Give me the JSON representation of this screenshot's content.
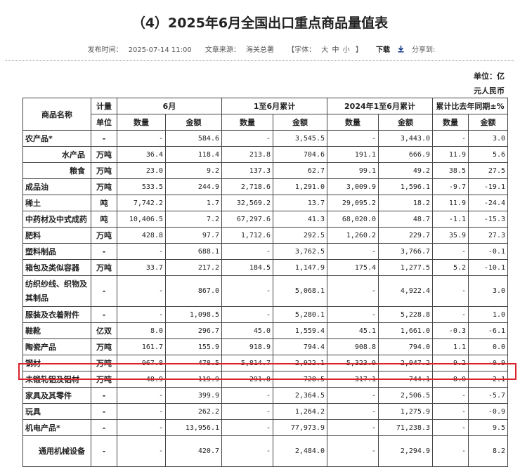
{
  "title": "（4）2025年6月全国出口重点商品量值表",
  "meta": {
    "publish_label": "发布时间：",
    "publish_time": "2025-07-14 11:00",
    "source_label": "文章来源：",
    "source": "海关总署",
    "font_label": "【字体：",
    "font_large": "大",
    "font_medium": "中",
    "font_small": "小",
    "font_close": "】",
    "download": "下载",
    "share": "分享到:"
  },
  "unit_line1": "单位：亿",
  "unit_line2": "元人民币",
  "headers": {
    "name": "商品名称",
    "unit_top": "计量",
    "unit_bottom": "单位",
    "june": "6月",
    "ytd": "1至6月累计",
    "ytd_2024": "2024年1至6月累计",
    "yoy": "累计比去年同期±%",
    "qty": "数量",
    "amount": "金额"
  },
  "rows": [
    {
      "name": "农产品*",
      "unit": "-",
      "jq": "-",
      "ja": "584.6",
      "yq": "-",
      "ya": "3,545.5",
      "pq": "-",
      "pa": "3,443.0",
      "cq": "-",
      "ca": "3.0"
    },
    {
      "name": "水产品",
      "unit": "万吨",
      "jq": "36.4",
      "ja": "118.4",
      "yq": "213.8",
      "ya": "704.6",
      "pq": "191.1",
      "pa": "666.9",
      "cq": "11.9",
      "ca": "5.6",
      "sub": true
    },
    {
      "name": "粮食",
      "unit": "万吨",
      "jq": "23.0",
      "ja": "9.2",
      "yq": "137.3",
      "ya": "62.7",
      "pq": "99.1",
      "pa": "49.2",
      "cq": "38.5",
      "ca": "27.5",
      "sub": true
    },
    {
      "name": "成品油",
      "unit": "万吨",
      "jq": "533.5",
      "ja": "244.9",
      "yq": "2,718.6",
      "ya": "1,291.0",
      "pq": "3,009.9",
      "pa": "1,596.1",
      "cq": "-9.7",
      "ca": "-19.1"
    },
    {
      "name": "稀土",
      "unit": "吨",
      "jq": "7,742.2",
      "ja": "1.7",
      "yq": "32,569.2",
      "ya": "13.7",
      "pq": "29,095.2",
      "pa": "18.2",
      "cq": "11.9",
      "ca": "-24.4"
    },
    {
      "name": "中药材及中式成药",
      "unit": "吨",
      "jq": "10,406.5",
      "ja": "7.2",
      "yq": "67,297.6",
      "ya": "41.3",
      "pq": "68,020.0",
      "pa": "48.7",
      "cq": "-1.1",
      "ca": "-15.3"
    },
    {
      "name": "肥料",
      "unit": "万吨",
      "jq": "428.8",
      "ja": "97.7",
      "yq": "1,712.6",
      "ya": "292.5",
      "pq": "1,260.2",
      "pa": "229.7",
      "cq": "35.9",
      "ca": "27.3"
    },
    {
      "name": "塑料制品",
      "unit": "-",
      "jq": "-",
      "ja": "688.1",
      "yq": "-",
      "ya": "3,762.5",
      "pq": "-",
      "pa": "3,766.7",
      "cq": "-",
      "ca": "-0.1"
    },
    {
      "name": "箱包及类似容器",
      "unit": "万吨",
      "jq": "33.7",
      "ja": "217.2",
      "yq": "184.5",
      "ya": "1,147.9",
      "pq": "175.4",
      "pa": "1,277.5",
      "cq": "5.2",
      "ca": "-10.1"
    },
    {
      "name": "纺织纱线、织物及其制品",
      "unit": "-",
      "jq": "-",
      "ja": "867.0",
      "yq": "-",
      "ya": "5,068.1",
      "pq": "-",
      "pa": "4,922.4",
      "cq": "-",
      "ca": "3.0",
      "tall": true
    },
    {
      "name": "服装及衣着附件",
      "unit": "-",
      "jq": "-",
      "ja": "1,098.5",
      "yq": "-",
      "ya": "5,280.1",
      "pq": "-",
      "pa": "5,228.8",
      "cq": "-",
      "ca": "1.0"
    },
    {
      "name": "鞋靴",
      "unit": "亿双",
      "jq": "8.0",
      "ja": "296.7",
      "yq": "45.0",
      "ya": "1,559.4",
      "pq": "45.1",
      "pa": "1,661.0",
      "cq": "-0.3",
      "ca": "-6.1"
    },
    {
      "name": "陶瓷产品",
      "unit": "万吨",
      "jq": "161.7",
      "ja": "155.9",
      "yq": "918.9",
      "ya": "794.4",
      "pq": "908.8",
      "pa": "794.0",
      "cq": "1.1",
      "ca": "0.0"
    },
    {
      "name": "钢材",
      "unit": "万吨",
      "jq": "967.8",
      "ja": "478.5",
      "yq": "5,814.7",
      "ya": "2,922.1",
      "pq": "5,323.9",
      "pa": "2,947.2",
      "cq": "9.2",
      "ca": "-0.9"
    },
    {
      "name": "未锻轧铝及铝材",
      "unit": "万吨",
      "jq": "48.9",
      "ja": "119.9",
      "yq": "291.8",
      "ya": "728.5",
      "pq": "317.1",
      "pa": "744.1",
      "cq": "-8.0",
      "ca": "-2.1"
    },
    {
      "name": "家具及其零件",
      "unit": "-",
      "jq": "-",
      "ja": "399.9",
      "yq": "-",
      "ya": "2,364.5",
      "pq": "-",
      "pa": "2,506.5",
      "cq": "-",
      "ca": "-5.7"
    },
    {
      "name": "玩具",
      "unit": "-",
      "jq": "-",
      "ja": "262.2",
      "yq": "-",
      "ya": "1,264.2",
      "pq": "-",
      "pa": "1,275.9",
      "cq": "-",
      "ca": "-0.9"
    },
    {
      "name": "机电产品*",
      "unit": "-",
      "jq": "-",
      "ja": "13,956.1",
      "yq": "-",
      "ya": "77,973.9",
      "pq": "-",
      "pa": "71,238.3",
      "cq": "-",
      "ca": "9.5"
    },
    {
      "name": "通用机械设备",
      "unit": "-",
      "jq": "-",
      "ja": "420.7",
      "yq": "-",
      "ya": "2,484.0",
      "pq": "-",
      "pa": "2,294.9",
      "cq": "-",
      "ca": "8.2",
      "tall": true,
      "sub": true
    }
  ]
}
